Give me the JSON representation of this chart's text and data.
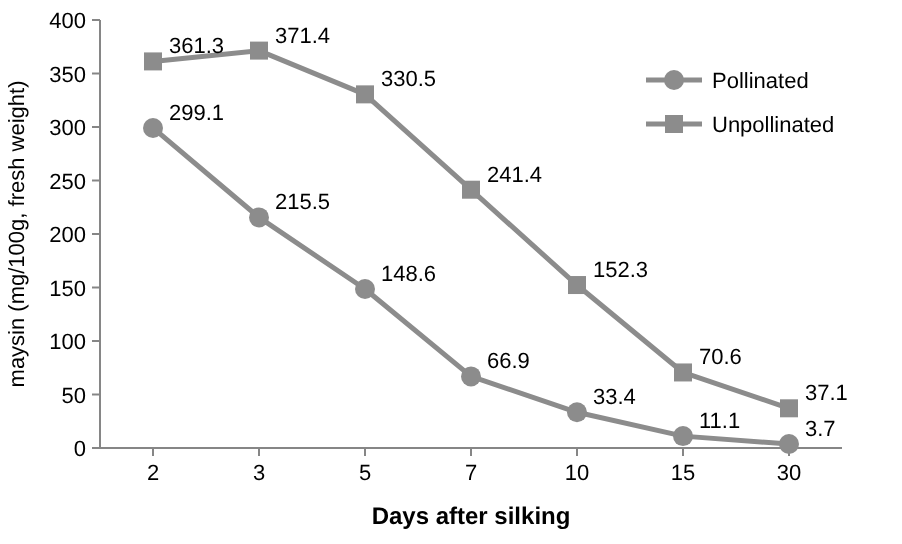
{
  "chart_data": {
    "type": "line",
    "xlabel": "Days after silking",
    "ylabel": "maysin (mg/100g, fresh weight)",
    "categories": [
      "2",
      "3",
      "5",
      "7",
      "10",
      "15",
      "30"
    ],
    "ylim": [
      0,
      400
    ],
    "yticks": [
      0,
      50,
      100,
      150,
      200,
      250,
      300,
      350,
      400
    ],
    "grid": false,
    "legend": "top right",
    "data_labels": true,
    "line_style": "solid",
    "series": [
      {
        "name": "Pollinated",
        "color": "#8c8c8c",
        "marker": "circle",
        "values": [
          299.1,
          215.5,
          148.6,
          66.9,
          33.4,
          11.1,
          3.7
        ]
      },
      {
        "name": "Unpollinated",
        "color": "#8c8c8c",
        "marker": "square",
        "values": [
          361.3,
          371.4,
          330.5,
          241.4,
          152.3,
          70.6,
          37.1
        ]
      }
    ]
  }
}
